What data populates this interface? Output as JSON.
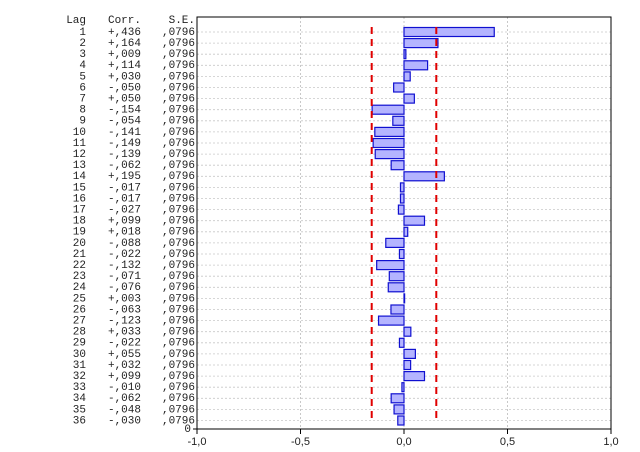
{
  "chart_data": {
    "type": "acf-bar",
    "header": [
      "Lag",
      "Corr.",
      "S.E."
    ],
    "categories": [
      1,
      2,
      3,
      4,
      5,
      6,
      7,
      8,
      9,
      10,
      11,
      12,
      13,
      14,
      15,
      16,
      17,
      18,
      19,
      20,
      21,
      22,
      23,
      24,
      25,
      26,
      27,
      28,
      29,
      30,
      31,
      32,
      33,
      34,
      35,
      36
    ],
    "series": [
      {
        "name": "Corr.",
        "color": "#b4b4ff",
        "stroke": "#1010d0",
        "values": [
          0.436,
          0.164,
          0.009,
          0.114,
          0.03,
          -0.05,
          0.05,
          -0.154,
          -0.054,
          -0.141,
          -0.149,
          -0.139,
          -0.062,
          0.195,
          -0.017,
          -0.017,
          -0.027,
          0.099,
          0.018,
          -0.088,
          -0.022,
          -0.132,
          -0.071,
          -0.076,
          0.003,
          -0.063,
          -0.123,
          0.033,
          -0.022,
          0.055,
          0.032,
          0.099,
          -0.01,
          -0.062,
          -0.048,
          -0.03
        ],
        "value_labels": [
          "+,436",
          "+,164",
          "+,009",
          "+,114",
          "+,030",
          "-,050",
          "+,050",
          "-,154",
          "-,054",
          "-,141",
          "-,149",
          "-,139",
          "-,062",
          "+,195",
          "-,017",
          "-,017",
          "-,027",
          "+,099",
          "+,018",
          "-,088",
          "-,022",
          "-,132",
          "-,071",
          "-,076",
          "+,003",
          "-,063",
          "-,123",
          "+,033",
          "-,022",
          "+,055",
          "+,032",
          "+,099",
          "-,010",
          "-,062",
          "-,048",
          "-,030"
        ]
      },
      {
        "name": "S.E.",
        "values": [
          0.0796,
          0.0796,
          0.0796,
          0.0796,
          0.0796,
          0.0796,
          0.0796,
          0.0796,
          0.0796,
          0.0796,
          0.0796,
          0.0796,
          0.0796,
          0.0796,
          0.0796,
          0.0796,
          0.0796,
          0.0796,
          0.0796,
          0.0796,
          0.0796,
          0.0796,
          0.0796,
          0.0796,
          0.0796,
          0.0796,
          0.0796,
          0.0796,
          0.0796,
          0.0796,
          0.0796,
          0.0796,
          0.0796,
          0.0796,
          0.0796,
          0.0796
        ],
        "value_labels": [
          ",0796",
          ",0796",
          ",0796",
          ",0796",
          ",0796",
          ",0796",
          ",0796",
          ",0796",
          ",0796",
          ",0796",
          ",0796",
          ",0796",
          ",0796",
          ",0796",
          ",0796",
          ",0796",
          ",0796",
          ",0796",
          ",0796",
          ",0796",
          ",0796",
          ",0796",
          ",0796",
          ",0796",
          ",0796",
          ",0796",
          ",0796",
          ",0796",
          ",0796",
          ",0796",
          ",0796",
          ",0796",
          ",0796",
          ",0796",
          ",0796",
          ",0796"
        ]
      }
    ],
    "conf_limit": 0.156,
    "conf_color": "#e00000",
    "xlim": [
      -1,
      1
    ],
    "xticks": [
      {
        "value": -1,
        "label": "-1,0"
      },
      {
        "value": -0.5,
        "label": "-0,5"
      },
      {
        "value": 0,
        "label": "0,0"
      },
      {
        "value": 0.5,
        "label": "0,5"
      },
      {
        "value": 1,
        "label": "1,0"
      }
    ],
    "yticks": [
      0
    ],
    "grid": true
  }
}
